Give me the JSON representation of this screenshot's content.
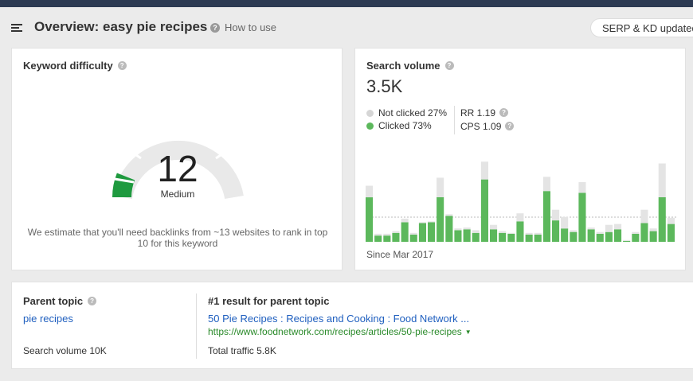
{
  "header": {
    "title": "Overview: easy pie recipes",
    "how_to_use": "How to use",
    "serp_status": "SERP & KD updated"
  },
  "keyword_difficulty": {
    "title": "Keyword difficulty",
    "value": "12",
    "level": "Medium",
    "description": "We estimate that you'll need backlinks from ~13 websites to rank in top 10 for this keyword",
    "gauge_fraction": 0.12
  },
  "search_volume": {
    "title": "Search volume",
    "value": "3.5K",
    "not_clicked": "Not clicked 27%",
    "clicked": "Clicked 73%",
    "rr": "RR 1.19",
    "cps": "CPS 1.09",
    "since": "Since Mar 2017",
    "colors": {
      "clicked": "#5cb85c",
      "not_clicked": "#e4e4e4"
    }
  },
  "chart_data": {
    "type": "bar",
    "series": [
      {
        "name": "Clicked",
        "values": [
          50,
          7,
          7,
          10,
          22,
          8,
          21,
          22,
          50,
          29,
          13,
          14,
          10,
          70,
          14,
          10,
          9,
          23,
          8,
          8,
          57,
          24,
          15,
          11,
          55,
          14,
          9,
          11,
          14,
          1,
          9,
          21,
          12,
          50,
          20
        ]
      },
      {
        "name": "Not clicked",
        "values": [
          13,
          2,
          2,
          2,
          4,
          2,
          1,
          1,
          22,
          2,
          2,
          2,
          3,
          20,
          5,
          2,
          1,
          9,
          2,
          2,
          16,
          12,
          13,
          2,
          12,
          2,
          2,
          8,
          6,
          1,
          2,
          15,
          3,
          38,
          7
        ]
      }
    ]
  },
  "parent_topic": {
    "title": "Parent topic",
    "topic": "pie recipes",
    "search_volume": "Search volume 10K",
    "result_title": "#1 result for parent topic",
    "result_link": "50 Pie Recipes : Recipes and Cooking : Food Network ...",
    "result_url": "https://www.foodnetwork.com/recipes/articles/50-pie-recipes",
    "total_traffic": "Total traffic 5.8K"
  }
}
